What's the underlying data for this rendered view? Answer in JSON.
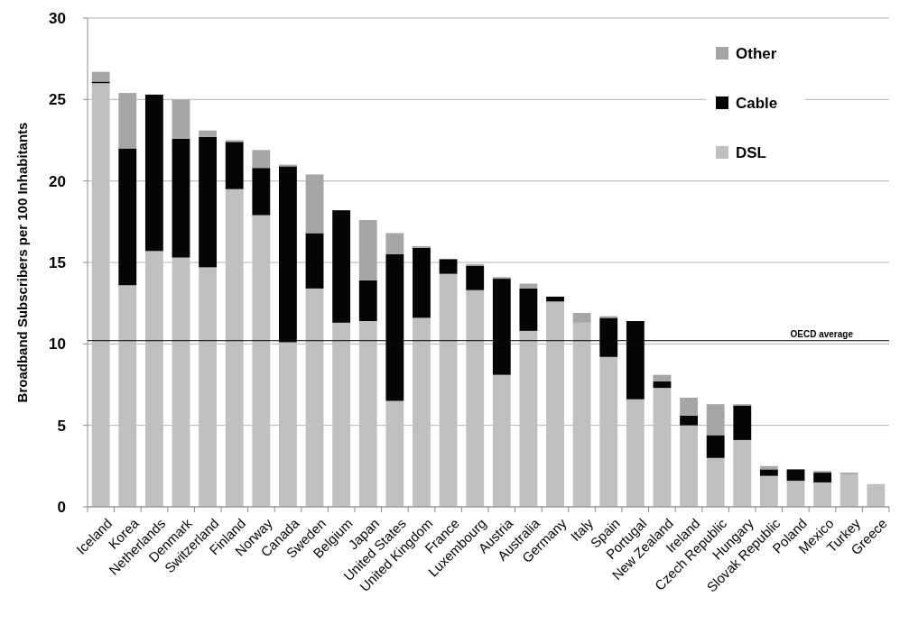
{
  "chart_data": {
    "type": "bar",
    "stacked": true,
    "ylabel": "Broadband Subscribers per 100 Inhabitants",
    "categories": [
      "Iceland",
      "Korea",
      "Netherlands",
      "Denmark",
      "Switzerland",
      "Finland",
      "Norway",
      "Canada",
      "Sweden",
      "Belgium",
      "Japan",
      "United States",
      "United Kingdom",
      "France",
      "Luxembourg",
      "Austria",
      "Australia",
      "Germany",
      "Italy",
      "Spain",
      "Portugal",
      "New Zealand",
      "Ireland",
      "Czech Republic",
      "Hungary",
      "Slovak Republic",
      "Poland",
      "Mexico",
      "Turkey",
      "Greece"
    ],
    "series": [
      {
        "name": "DSL",
        "color": "#c0c0c0",
        "values": [
          26.0,
          13.6,
          15.7,
          15.3,
          14.7,
          19.5,
          17.9,
          10.1,
          13.4,
          11.3,
          11.4,
          6.5,
          11.6,
          14.3,
          13.3,
          8.1,
          10.8,
          12.6,
          11.3,
          9.2,
          6.6,
          7.3,
          5.0,
          3.0,
          4.1,
          1.9,
          1.6,
          1.5,
          2.0,
          1.4
        ]
      },
      {
        "name": "Cable",
        "color": "#050505",
        "values": [
          0.1,
          8.4,
          9.6,
          7.3,
          8.0,
          2.9,
          2.9,
          10.8,
          3.4,
          6.9,
          2.5,
          9.0,
          4.3,
          0.9,
          1.5,
          5.9,
          2.6,
          0.3,
          0,
          2.4,
          4.8,
          0.4,
          0.6,
          1.4,
          2.1,
          0.4,
          0.7,
          0.6,
          0,
          0
        ]
      },
      {
        "name": "Other",
        "color": "#a6a6a6",
        "values": [
          0.6,
          3.4,
          0,
          2.4,
          0.4,
          0.1,
          1.1,
          0.1,
          3.6,
          0,
          3.7,
          1.3,
          0.1,
          0,
          0.1,
          0.1,
          0.3,
          0,
          0.6,
          0.1,
          0,
          0.4,
          1.1,
          1.9,
          0.1,
          0.2,
          0,
          0.1,
          0.1,
          0
        ]
      }
    ],
    "ylim": [
      0,
      30
    ],
    "yticks": [
      0,
      5,
      10,
      15,
      20,
      25,
      30
    ],
    "grid": "y",
    "legend": "top right",
    "ref_lines": [
      {
        "axis": "y",
        "value": 10.2,
        "label": "OECD average",
        "color": "#000000"
      }
    ]
  }
}
